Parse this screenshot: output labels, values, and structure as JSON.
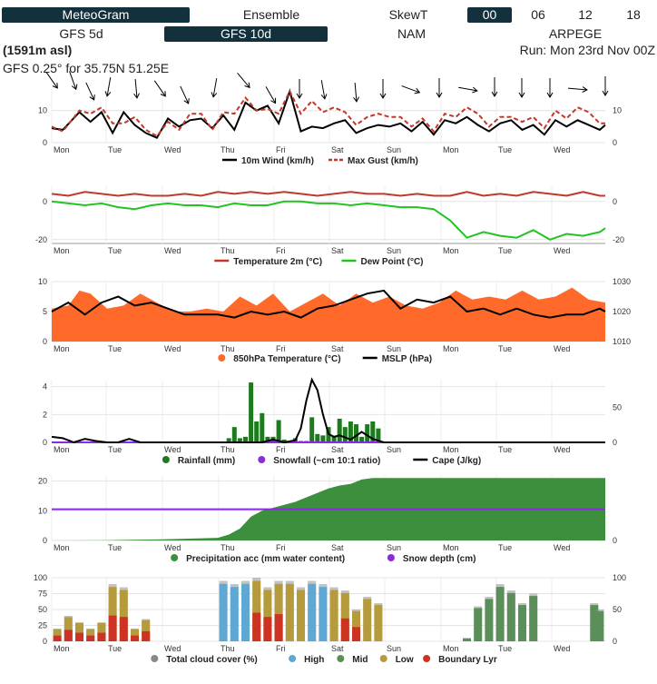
{
  "nav": {
    "row1": [
      {
        "label": "MeteoGram",
        "active": true
      },
      {
        "label": "Ensemble",
        "active": false
      },
      {
        "label": "SkewT",
        "active": false
      },
      {
        "label": "00",
        "active": true
      },
      {
        "label": "06",
        "active": false
      },
      {
        "label": "12",
        "active": false
      },
      {
        "label": "18",
        "active": false
      }
    ],
    "row2": [
      {
        "label": "GFS 5d",
        "active": false
      },
      {
        "label": "GFS 10d",
        "active": true
      },
      {
        "label": "NAM",
        "active": false
      },
      {
        "label": "ARPEGE",
        "active": false
      }
    ]
  },
  "header": {
    "elevation": "(1591m asl)",
    "run": "Run: Mon 23rd Nov 00Z",
    "location": "GFS 0.25° for 35.75N 51.25E"
  },
  "days": [
    "Mon",
    "Tue",
    "Wed",
    "Thu",
    "Fri",
    "Sat",
    "Sun",
    "Mon",
    "Tue",
    "Wed"
  ],
  "colors": {
    "nav_active": "#12313d",
    "wind": "#000000",
    "gust": "#c0392b",
    "temp": "#c0392b",
    "dew": "#22c422",
    "t850": "#ff6a2a",
    "mslp": "#000000",
    "rain": "#1e7a1e",
    "snow": "#8a2be2",
    "precip_acc": "#3c8f3c",
    "cloud_total": "#888888",
    "cloud_high": "#5fa8d3",
    "cloud_mid": "#5a8f5a",
    "cloud_low": "#b59b3c",
    "cloud_bl": "#cc3322"
  },
  "chart_data": [
    {
      "type": "line",
      "id": "wind",
      "ylim": [
        0,
        17
      ],
      "y_ticks": [
        0,
        10
      ],
      "y2_ticks": [
        0,
        10
      ],
      "x_range": [
        0,
        10
      ],
      "series": [
        {
          "name": "10m Wind (km/h)",
          "style": "solid",
          "x": [
            0,
            0.2,
            0.5,
            0.7,
            0.9,
            1.1,
            1.3,
            1.5,
            1.7,
            1.9,
            2.1,
            2.3,
            2.5,
            2.7,
            2.9,
            3.1,
            3.3,
            3.5,
            3.7,
            3.9,
            4.1,
            4.3,
            4.5,
            4.7,
            4.9,
            5.1,
            5.3,
            5.5,
            5.7,
            5.9,
            6.1,
            6.3,
            6.5,
            6.7,
            6.9,
            7.1,
            7.3,
            7.5,
            7.7,
            7.9,
            8.1,
            8.3,
            8.5,
            8.7,
            8.9,
            9.1,
            9.3,
            9.5,
            9.7,
            9.9,
            10
          ],
          "values": [
            4.5,
            4,
            9.5,
            6.5,
            9.5,
            3,
            9.5,
            5.5,
            3,
            1.5,
            7.5,
            5,
            7,
            7.5,
            4.5,
            8.5,
            4,
            12.5,
            10,
            11.5,
            6,
            16,
            3.5,
            5,
            4.5,
            6,
            7,
            3,
            4.5,
            5.5,
            5,
            6,
            3.5,
            6.5,
            2.5,
            7,
            6,
            8,
            5.5,
            3.5,
            6,
            7,
            4,
            5.5,
            2.5,
            7,
            5,
            7,
            5.5,
            4,
            5.5
          ]
        },
        {
          "name": "Max Gust (km/h)",
          "style": "dashed",
          "x": [
            0,
            0.2,
            0.5,
            0.7,
            0.9,
            1.1,
            1.3,
            1.5,
            1.7,
            1.9,
            2.1,
            2.3,
            2.5,
            2.7,
            2.9,
            3.1,
            3.3,
            3.5,
            3.7,
            3.9,
            4.1,
            4.3,
            4.5,
            4.7,
            4.9,
            5.1,
            5.3,
            5.5,
            5.7,
            5.9,
            6.1,
            6.3,
            6.5,
            6.7,
            6.9,
            7.1,
            7.3,
            7.5,
            7.7,
            7.9,
            8.1,
            8.3,
            8.5,
            8.7,
            8.9,
            9.1,
            9.3,
            9.5,
            9.7,
            9.9,
            10
          ],
          "values": [
            5,
            3.5,
            10,
            9,
            11,
            6,
            6,
            8,
            4,
            2,
            6.5,
            4,
            9,
            9,
            4,
            9.5,
            9,
            14,
            10,
            10.5,
            9,
            16,
            9,
            13,
            9.5,
            11,
            9.5,
            5.5,
            8,
            9,
            8,
            8,
            5,
            7.5,
            3.5,
            9,
            8,
            11,
            9,
            5,
            8,
            8,
            6.5,
            8,
            4.5,
            10,
            7.5,
            11,
            9.5,
            6,
            6
          ]
        }
      ],
      "legend": [
        "10m Wind (km/h)",
        "Max Gust (km/h)"
      ]
    },
    {
      "type": "line",
      "id": "temp",
      "ylim": [
        -22,
        8
      ],
      "y_ticks": [
        0,
        -20
      ],
      "y2_ticks": [
        0,
        -20
      ],
      "x_range": [
        0,
        10
      ],
      "series": [
        {
          "name": "Temperature 2m (°C)",
          "style": "solid",
          "x": [
            0,
            0.3,
            0.6,
            0.9,
            1.2,
            1.5,
            1.8,
            2.1,
            2.4,
            2.7,
            3.0,
            3.3,
            3.6,
            3.9,
            4.2,
            4.5,
            4.8,
            5.1,
            5.4,
            5.7,
            6.0,
            6.3,
            6.6,
            6.9,
            7.2,
            7.5,
            7.8,
            8.1,
            8.4,
            8.7,
            9.0,
            9.3,
            9.6,
            9.9,
            10
          ],
          "values": [
            4,
            3,
            5,
            4,
            3,
            4,
            3,
            3,
            4,
            3,
            5,
            4,
            5,
            4,
            5,
            4,
            3,
            4,
            5,
            4,
            4,
            3,
            4,
            3,
            3,
            5,
            3,
            4,
            3,
            5,
            4,
            3,
            5,
            3,
            3
          ]
        },
        {
          "name": "Dew Point (°C)",
          "style": "solid",
          "x": [
            0,
            0.3,
            0.6,
            0.9,
            1.2,
            1.5,
            1.8,
            2.1,
            2.4,
            2.7,
            3.0,
            3.3,
            3.6,
            3.9,
            4.2,
            4.5,
            4.8,
            5.1,
            5.4,
            5.7,
            6.0,
            6.3,
            6.6,
            6.9,
            7.2,
            7.5,
            7.8,
            8.1,
            8.4,
            8.7,
            9.0,
            9.3,
            9.6,
            9.9,
            10
          ],
          "values": [
            0,
            -1,
            -2,
            -1,
            -3,
            -4,
            -2,
            -1,
            -2,
            -2,
            -3,
            -1,
            -2,
            -2,
            0,
            0,
            -1,
            -1,
            -2,
            -1,
            -2,
            -3,
            -3,
            -4,
            -10,
            -19,
            -16,
            -18,
            -19,
            -15,
            -20,
            -17,
            -18,
            -16,
            -14
          ]
        }
      ],
      "legend": [
        "Temperature 2m (°C)",
        "Dew Point (°C)"
      ]
    },
    {
      "type": "area",
      "id": "t850",
      "ylim": [
        0,
        10
      ],
      "y_ticks": [
        0,
        5,
        10
      ],
      "y2_ticks": [
        1010,
        1020,
        1030
      ],
      "y2lim": [
        1010,
        1030
      ],
      "x_range": [
        0,
        10
      ],
      "series": [
        {
          "name": "850hPa Temperature (°C)",
          "style": "area",
          "x": [
            0,
            0.3,
            0.5,
            0.7,
            1.0,
            1.3,
            1.6,
            1.9,
            2.2,
            2.5,
            2.8,
            3.1,
            3.4,
            3.7,
            4.0,
            4.3,
            4.6,
            4.9,
            5.2,
            5.5,
            5.8,
            6.1,
            6.4,
            6.7,
            7.0,
            7.3,
            7.6,
            7.9,
            8.2,
            8.5,
            8.8,
            9.1,
            9.4,
            9.7,
            10
          ],
          "values": [
            5.5,
            6,
            8.5,
            8,
            5.5,
            6,
            8,
            6.5,
            5,
            5,
            5.5,
            5,
            7.5,
            6,
            8,
            5,
            6.5,
            8,
            6,
            8,
            6.5,
            7.5,
            6,
            5.5,
            6.5,
            8.5,
            7,
            7.5,
            7,
            8.5,
            7,
            7.5,
            9,
            7,
            6.5
          ]
        },
        {
          "name": "MSLP (hPa)",
          "style": "solid",
          "axis": "y2",
          "x": [
            0,
            0.3,
            0.6,
            0.9,
            1.2,
            1.5,
            1.8,
            2.1,
            2.4,
            2.7,
            3.0,
            3.3,
            3.6,
            3.9,
            4.2,
            4.5,
            4.8,
            5.1,
            5.4,
            5.7,
            6.0,
            6.3,
            6.6,
            6.9,
            7.2,
            7.5,
            7.8,
            8.1,
            8.4,
            8.7,
            9.0,
            9.3,
            9.6,
            9.9,
            10
          ],
          "values": [
            1020,
            1023,
            1019,
            1023,
            1025,
            1022,
            1023,
            1021,
            1019,
            1019,
            1019,
            1018,
            1020,
            1019,
            1020,
            1018,
            1021,
            1022,
            1024,
            1026,
            1027,
            1021,
            1024,
            1023,
            1025,
            1020,
            1021,
            1019,
            1021,
            1019,
            1018,
            1019,
            1019,
            1021,
            1020
          ]
        }
      ],
      "legend": [
        "850hPa Temperature (°C)",
        "MSLP (hPa)"
      ]
    },
    {
      "type": "bar",
      "id": "rain",
      "ylim": [
        0,
        4.5
      ],
      "y_ticks": [
        0,
        2,
        4
      ],
      "y2_ticks": [
        0,
        50
      ],
      "y2lim": [
        0,
        90
      ],
      "x_range": [
        0,
        10
      ],
      "series": [
        {
          "name": "Rainfall (mm)",
          "style": "bar",
          "x": [
            3.2,
            3.3,
            3.4,
            3.5,
            3.6,
            3.7,
            3.8,
            3.9,
            4.0,
            4.1,
            4.2,
            4.3,
            4.4,
            4.5,
            4.6,
            4.7,
            4.8,
            4.9,
            5.0,
            5.1,
            5.2,
            5.3,
            5.4,
            5.5,
            5.6,
            5.7,
            5.8,
            5.9
          ],
          "values": [
            0.3,
            1.1,
            0.3,
            0.4,
            4.3,
            1.5,
            2.1,
            0.4,
            0.4,
            1.6,
            0.2,
            0.1,
            0.3,
            0.1,
            0.1,
            1.8,
            0.6,
            0.5,
            1.1,
            0.4,
            1.7,
            1.1,
            1.5,
            1.3,
            0.4,
            1.3,
            1.5,
            1.0
          ]
        },
        {
          "name": "Snowfall (~cm 10:1 ratio)",
          "style": "solid",
          "x": [
            0,
            10
          ],
          "values": [
            0,
            0
          ]
        },
        {
          "name": "Cape (J/kg)",
          "style": "solid",
          "axis": "y2",
          "x": [
            0,
            0.2,
            0.4,
            0.6,
            0.8,
            1.0,
            1.2,
            1.4,
            1.6,
            1.8,
            2.0,
            3.0,
            3.8,
            4.0,
            4.2,
            4.4,
            4.5,
            4.6,
            4.7,
            4.8,
            4.9,
            5.0,
            5.1,
            5.2,
            5.4,
            5.6,
            5.8,
            6.0,
            7.0,
            10
          ],
          "values": [
            8,
            6,
            0,
            5,
            2,
            0,
            0,
            5,
            0,
            0,
            0,
            0,
            0,
            4,
            0,
            3,
            20,
            60,
            90,
            75,
            40,
            12,
            8,
            10,
            4,
            15,
            5,
            0,
            0,
            0
          ]
        }
      ],
      "legend": [
        "Rainfall (mm)",
        "Snowfall (~cm 10:1 ratio)",
        "Cape (J/kg)"
      ]
    },
    {
      "type": "area",
      "id": "precip",
      "ylim": [
        0,
        22
      ],
      "y_ticks": [
        0,
        10,
        20
      ],
      "y2_ticks": [
        0
      ],
      "x_range": [
        0,
        10
      ],
      "series": [
        {
          "name": "Precipitation acc (mm water content)",
          "style": "area",
          "x": [
            0,
            1,
            2,
            3,
            3.2,
            3.4,
            3.6,
            3.8,
            4.0,
            4.2,
            4.4,
            4.6,
            4.8,
            5.0,
            5.2,
            5.4,
            5.6,
            5.8,
            6.0,
            10
          ],
          "values": [
            0,
            0.1,
            0.4,
            0.9,
            2,
            4,
            8,
            10,
            11,
            12,
            13,
            14.5,
            16,
            17.5,
            18.5,
            19,
            20.5,
            21,
            21,
            21
          ]
        },
        {
          "name": "Snow depth (cm)",
          "style": "solid",
          "x": [
            0,
            10
          ],
          "values": [
            10.5,
            10.5
          ]
        }
      ],
      "legend": [
        "Precipitation acc (mm water content)",
        "Snow depth (cm)"
      ]
    },
    {
      "type": "bar",
      "id": "cloud",
      "ylim": [
        0,
        100
      ],
      "y_ticks": [
        0,
        25,
        50,
        75,
        100
      ],
      "y2_ticks": [
        0,
        50,
        100
      ],
      "x_range": [
        0,
        10
      ],
      "series": [
        {
          "name": "Total cloud cover (%)",
          "style": "bar",
          "x": [
            0.1,
            0.3,
            0.5,
            0.7,
            0.9,
            1.1,
            1.3,
            1.5,
            1.7,
            2.5,
            2.7,
            2.9,
            3.1,
            3.3,
            3.5,
            3.7,
            3.9,
            4.1,
            4.3,
            4.5,
            4.7,
            4.9,
            5.1,
            5.3,
            5.5,
            5.7,
            5.9,
            7.5,
            7.7,
            7.9,
            8.1,
            8.3,
            8.5,
            8.7,
            9.8,
            9.9
          ],
          "values": [
            20,
            40,
            30,
            20,
            30,
            90,
            85,
            20,
            35,
            0,
            0,
            0,
            95,
            90,
            95,
            100,
            85,
            95,
            95,
            85,
            95,
            90,
            85,
            80,
            50,
            70,
            60,
            5,
            55,
            70,
            90,
            80,
            60,
            75,
            60,
            50
          ]
        }
      ],
      "legend": [
        "Total cloud cover (%)",
        "High",
        "Mid",
        "Low",
        "Boundary Lyr"
      ]
    }
  ]
}
